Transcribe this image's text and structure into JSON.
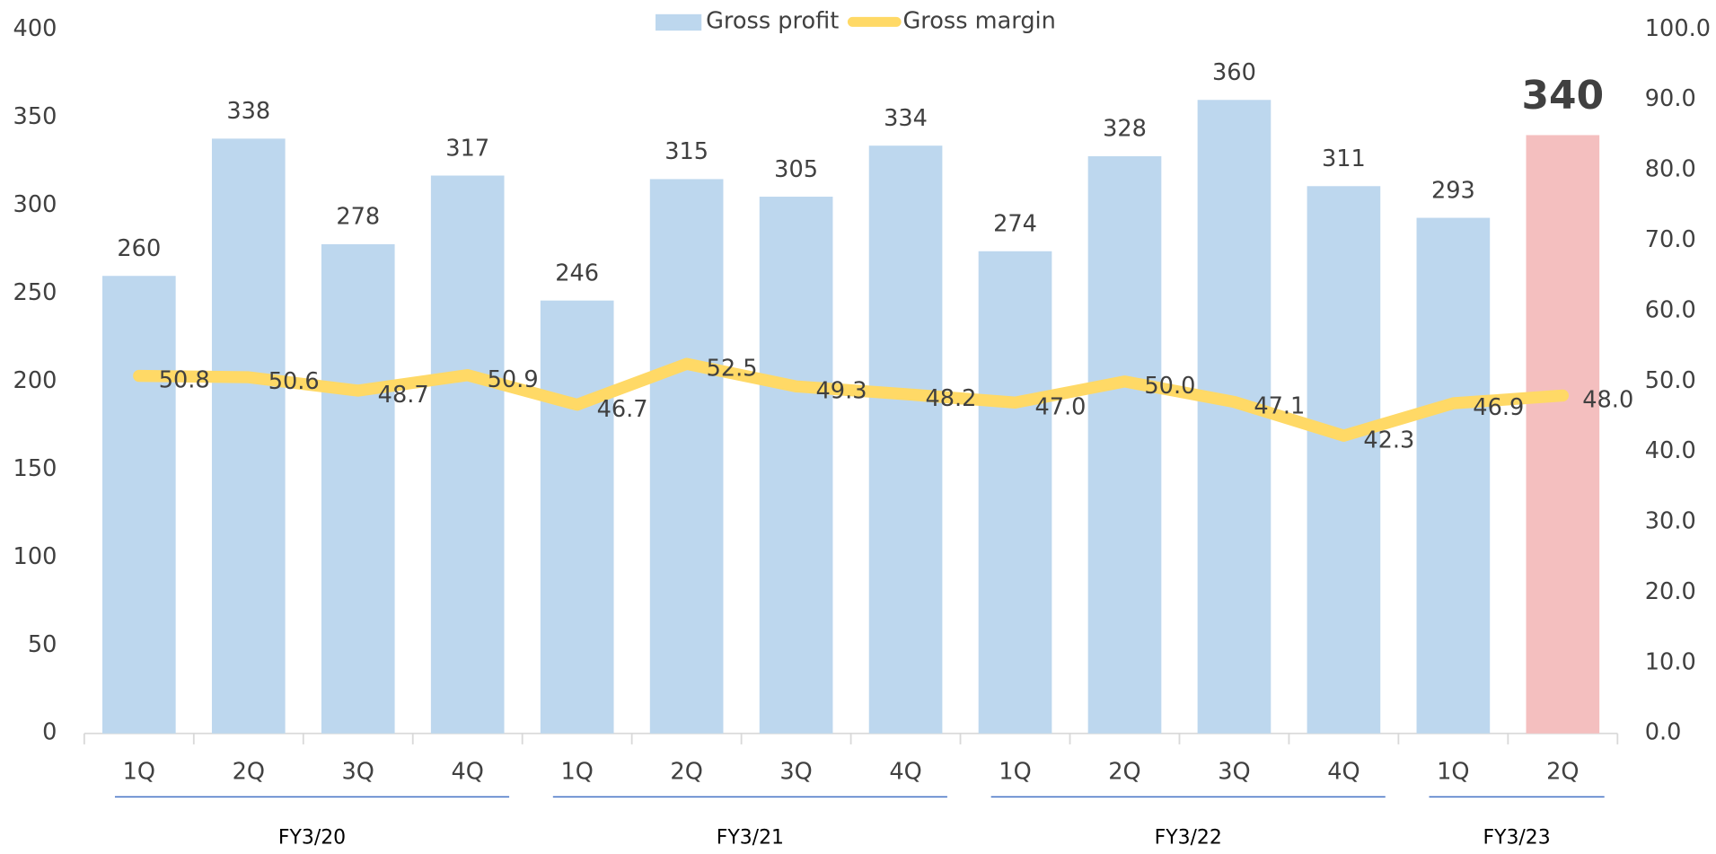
{
  "chart_data": {
    "type": "bar",
    "groups": [
      {
        "name": "FY3/20",
        "categories": [
          "1Q",
          "2Q",
          "3Q",
          "4Q"
        ]
      },
      {
        "name": "FY3/21",
        "categories": [
          "1Q",
          "2Q",
          "3Q",
          "4Q"
        ]
      },
      {
        "name": "FY3/22",
        "categories": [
          "1Q",
          "2Q",
          "3Q",
          "4Q"
        ]
      },
      {
        "name": "FY3/23",
        "categories": [
          "1Q",
          "2Q"
        ]
      }
    ],
    "series": [
      {
        "name": "Gross profit",
        "type": "bar",
        "color": "#bdd7ee",
        "colors": [
          "#bdd7ee",
          "#bdd7ee",
          "#bdd7ee",
          "#bdd7ee",
          "#bdd7ee",
          "#bdd7ee",
          "#bdd7ee",
          "#bdd7ee",
          "#bdd7ee",
          "#bdd7ee",
          "#bdd7ee",
          "#bdd7ee",
          "#bdd7ee",
          "#f4bfbf"
        ],
        "values": [
          260,
          338,
          278,
          317,
          246,
          315,
          305,
          334,
          274,
          328,
          360,
          311,
          293,
          340
        ]
      },
      {
        "name": "Gross margin",
        "type": "line",
        "axis": "y2",
        "color": "#ffd966",
        "values": [
          50.8,
          50.6,
          48.7,
          50.9,
          46.7,
          52.5,
          49.3,
          48.2,
          47.0,
          50.0,
          47.1,
          42.3,
          46.9,
          48.0
        ],
        "value_labels": [
          "50.8",
          "50.6",
          "48.7",
          "50.9",
          "46.7",
          "52.5",
          "49.3",
          "48.2",
          "47.0",
          "50.0",
          "47.1",
          "42.3",
          "46.9",
          "48.0"
        ]
      }
    ],
    "ylim": [
      0,
      400
    ],
    "yticks": [
      0,
      50,
      100,
      150,
      200,
      250,
      300,
      350,
      400
    ],
    "y2lim": [
      0,
      100
    ],
    "y2ticks": [
      {
        "value": 0,
        "label": "0.0"
      },
      {
        "value": 10,
        "label": "10.0"
      },
      {
        "value": 20,
        "label": "20.0"
      },
      {
        "value": 30,
        "label": "30.0"
      },
      {
        "value": 40,
        "label": "40.0"
      },
      {
        "value": 50,
        "label": "50.0"
      },
      {
        "value": 60,
        "label": "60.0"
      },
      {
        "value": 70,
        "label": "70.0"
      },
      {
        "value": 80,
        "label": "80.0"
      },
      {
        "value": 90,
        "label": "90.0"
      },
      {
        "value": 100,
        "label": "100.0"
      }
    ],
    "legend": "top"
  }
}
